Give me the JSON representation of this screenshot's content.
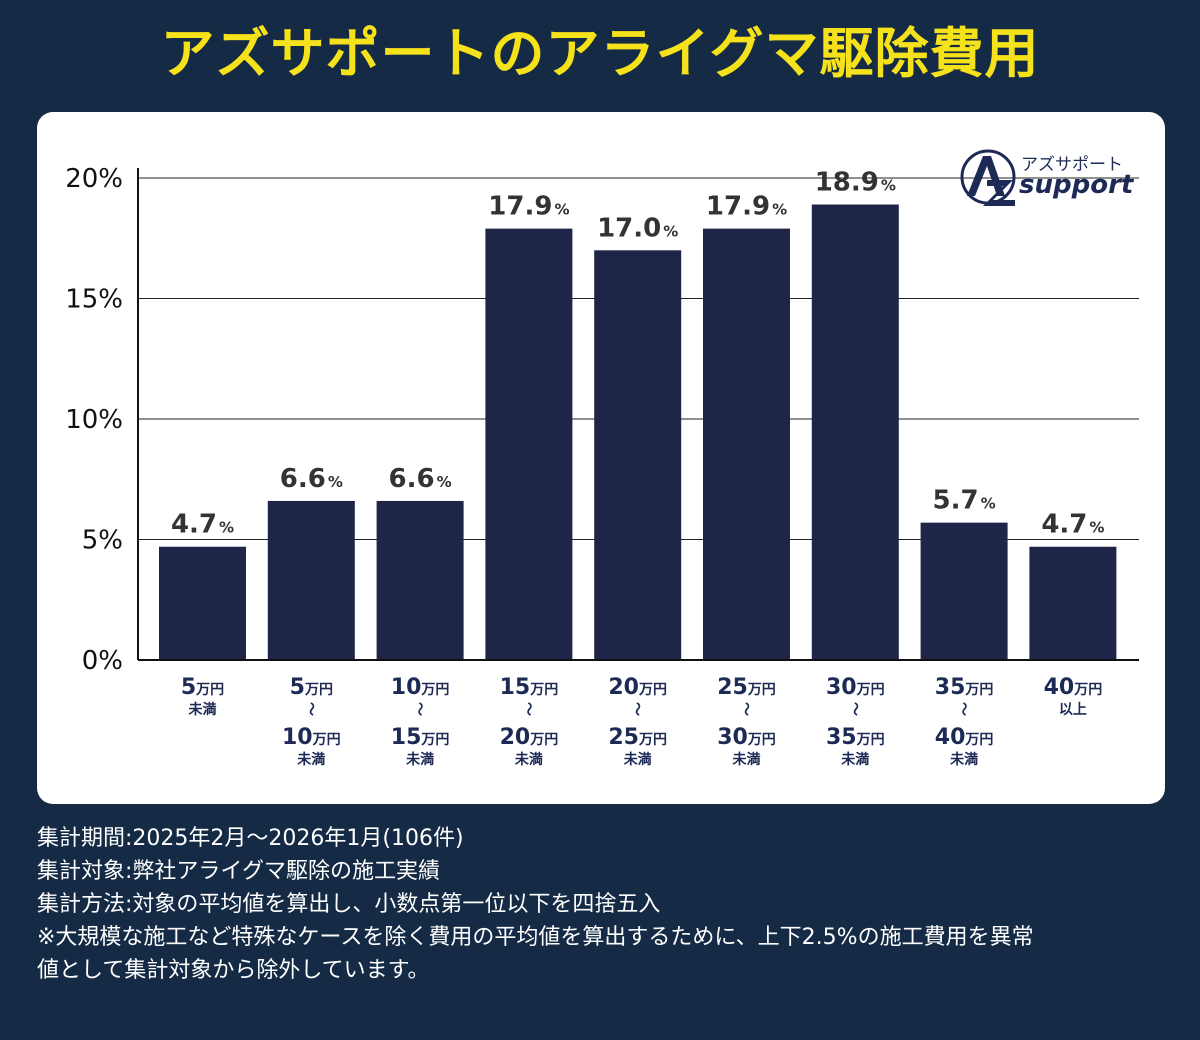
{
  "title": "アズサポートのアライグマ駆除費用",
  "logo": {
    "kana": "アズサポート",
    "word": "support"
  },
  "chart_data": {
    "type": "bar",
    "title": "アズサポートのアライグマ駆除費用",
    "ylim": [
      0,
      20
    ],
    "yticks": [
      "0%",
      "5%",
      "10%",
      "15%",
      "20%"
    ],
    "ytick_values": [
      0,
      5,
      10,
      15,
      20
    ],
    "grid": true,
    "bar_color": "#1f2548",
    "value_unit": "%",
    "categories": [
      {
        "lines": [
          {
            "num": "5",
            "unit": "万円"
          },
          {
            "sub": "未満"
          }
        ]
      },
      {
        "lines": [
          {
            "num": "5",
            "unit": "万円"
          },
          {
            "tilde": "〜"
          },
          {
            "num": "10",
            "unit": "万円"
          },
          {
            "sub": "未満"
          }
        ]
      },
      {
        "lines": [
          {
            "num": "10",
            "unit": "万円"
          },
          {
            "tilde": "〜"
          },
          {
            "num": "15",
            "unit": "万円"
          },
          {
            "sub": "未満"
          }
        ]
      },
      {
        "lines": [
          {
            "num": "15",
            "unit": "万円"
          },
          {
            "tilde": "〜"
          },
          {
            "num": "20",
            "unit": "万円"
          },
          {
            "sub": "未満"
          }
        ]
      },
      {
        "lines": [
          {
            "num": "20",
            "unit": "万円"
          },
          {
            "tilde": "〜"
          },
          {
            "num": "25",
            "unit": "万円"
          },
          {
            "sub": "未満"
          }
        ]
      },
      {
        "lines": [
          {
            "num": "25",
            "unit": "万円"
          },
          {
            "tilde": "〜"
          },
          {
            "num": "30",
            "unit": "万円"
          },
          {
            "sub": "未満"
          }
        ]
      },
      {
        "lines": [
          {
            "num": "30",
            "unit": "万円"
          },
          {
            "tilde": "〜"
          },
          {
            "num": "35",
            "unit": "万円"
          },
          {
            "sub": "未満"
          }
        ]
      },
      {
        "lines": [
          {
            "num": "35",
            "unit": "万円"
          },
          {
            "tilde": "〜"
          },
          {
            "num": "40",
            "unit": "万円"
          },
          {
            "sub": "未満"
          }
        ]
      },
      {
        "lines": [
          {
            "num": "40",
            "unit": "万円"
          },
          {
            "sub": "以上"
          }
        ]
      }
    ],
    "values": [
      4.7,
      6.6,
      6.6,
      17.9,
      17.0,
      17.9,
      18.9,
      5.7,
      4.7
    ],
    "value_labels": [
      "4.7",
      "6.6",
      "6.6",
      "17.9",
      "17.0",
      "17.9",
      "18.9",
      "5.7",
      "4.7"
    ]
  },
  "notes": [
    "集計期間:2025年2月〜2026年1月(106件)",
    "集計対象:弊社アライグマ駆除の施工実績",
    "集計方法:対象の平均値を算出し、小数点第一位以下を四捨五入",
    "※大規模な施工など特殊なケースを除く費用の平均値を算出するために、上下2.5%の施工費用を異常",
    "値として集計対象から除外しています。"
  ],
  "colors": {
    "background": "#142a45",
    "title": "#f5e21a",
    "bar": "#1f2548",
    "card": "#ffffff"
  }
}
